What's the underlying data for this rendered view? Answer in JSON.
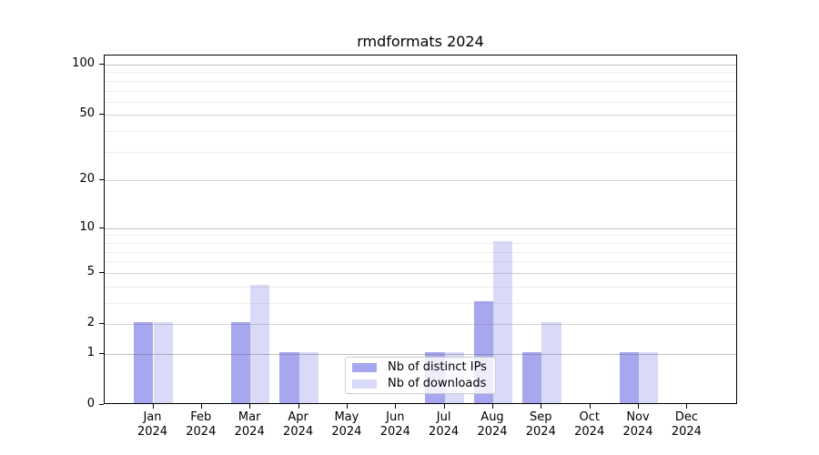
{
  "title": "rmdformats 2024",
  "legend": {
    "items": [
      {
        "label": "Nb of distinct IPs",
        "color": "#a7a7f0"
      },
      {
        "label": "Nb of downloads",
        "color": "#d9d9f8"
      }
    ]
  },
  "axes": {
    "y_tick_labels": [
      "0",
      "1",
      "2",
      "5",
      "10",
      "20",
      "50",
      "100"
    ],
    "y_tick_values": [
      0,
      1,
      2,
      5,
      10,
      20,
      50,
      100
    ],
    "x_months": [
      "Jan",
      "Feb",
      "Mar",
      "Apr",
      "May",
      "Jun",
      "Jul",
      "Aug",
      "Sep",
      "Oct",
      "Nov",
      "Dec"
    ],
    "x_year": "2024"
  },
  "chart_data": {
    "type": "bar",
    "title": "rmdformats 2024",
    "scale": "log1p",
    "categories": [
      "Jan 2024",
      "Feb 2024",
      "Mar 2024",
      "Apr 2024",
      "May 2024",
      "Jun 2024",
      "Jul 2024",
      "Aug 2024",
      "Sep 2024",
      "Oct 2024",
      "Nov 2024",
      "Dec 2024"
    ],
    "series": [
      {
        "name": "Nb of distinct IPs",
        "color": "#a7a7f0",
        "values": [
          2,
          0,
          2,
          1,
          0,
          0,
          1,
          3,
          1,
          0,
          1,
          0
        ]
      },
      {
        "name": "Nb of downloads",
        "color": "#d9d9f8",
        "values": [
          2,
          0,
          4,
          1,
          0,
          0,
          1,
          8,
          2,
          0,
          1,
          0
        ]
      }
    ],
    "ylim": [
      0,
      100
    ],
    "yticks": [
      0,
      1,
      2,
      5,
      10,
      20,
      50,
      100
    ],
    "grid": "on",
    "legend_position": "lower center"
  }
}
